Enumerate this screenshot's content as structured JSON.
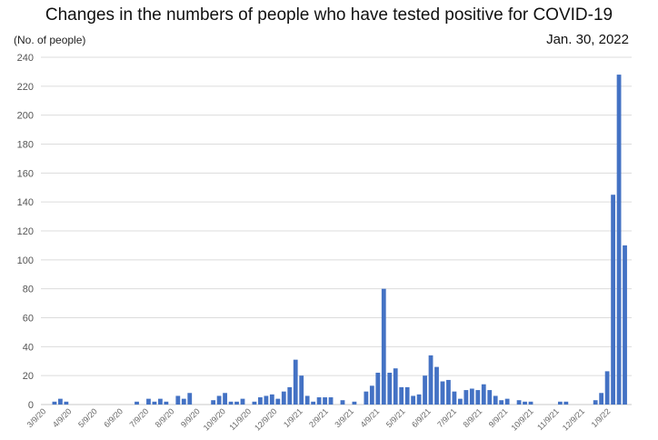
{
  "chart_data": {
    "type": "bar",
    "title": "Changes in the numbers of people who have tested positive for COVID-19",
    "ylabel": "(No. of people)",
    "date_note": "Jan. 30, 2022",
    "ylim": [
      0,
      240
    ],
    "yticks": [
      0,
      20,
      40,
      60,
      80,
      100,
      120,
      140,
      160,
      180,
      200,
      220,
      240
    ],
    "grid": true,
    "color": "#4472C4",
    "xtick_labels": [
      "3/9/20",
      "4/9/20",
      "5/9/20",
      "6/9/20",
      "7/9/20",
      "8/9/20",
      "9/9/20",
      "10/9/20",
      "11/9/20",
      "12/9/20",
      "1/9/21",
      "2/9/21",
      "3/9/21",
      "4/9/21",
      "5/9/21",
      "6/9/21",
      "7/9/21",
      "8/9/21",
      "9/9/21",
      "10/9/21",
      "11/9/21",
      "12/9/21",
      "1/9/22"
    ],
    "values": [
      0,
      0,
      2,
      4,
      2,
      0,
      0,
      0,
      0,
      0,
      0,
      0,
      0,
      0,
      0,
      0,
      2,
      0,
      4,
      2,
      4,
      2,
      0,
      6,
      4,
      8,
      0,
      0,
      0,
      3,
      6,
      8,
      2,
      2,
      4,
      0,
      2,
      5,
      6,
      7,
      4,
      9,
      12,
      31,
      20,
      6,
      2,
      5,
      5,
      5,
      0,
      3,
      0,
      2,
      0,
      9,
      13,
      22,
      80,
      22,
      25,
      12,
      12,
      6,
      7,
      20,
      34,
      26,
      16,
      17,
      9,
      4,
      10,
      11,
      10,
      14,
      10,
      6,
      3,
      4,
      0,
      3,
      2,
      2,
      0,
      0,
      0,
      0,
      2,
      2,
      0,
      0,
      0,
      0,
      3,
      8,
      23,
      145,
      228,
      110
    ]
  }
}
